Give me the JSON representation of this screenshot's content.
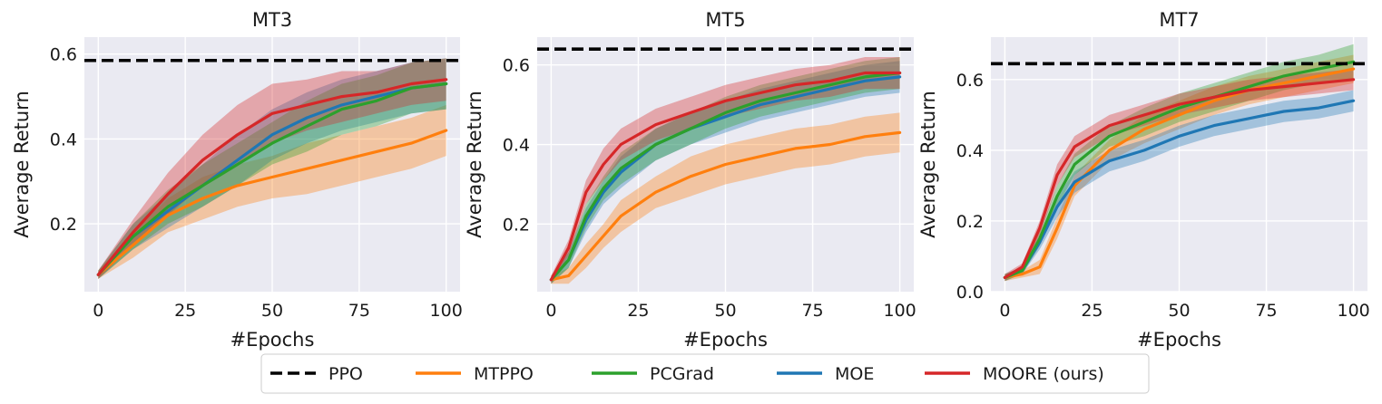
{
  "figure": {
    "legend": [
      {
        "name": "PPO",
        "color": "#000000",
        "dashed": true
      },
      {
        "name": "MTPPO",
        "color": "#ff7f0e",
        "dashed": false
      },
      {
        "name": "PCGrad",
        "color": "#2ca02c",
        "dashed": false
      },
      {
        "name": "MOE",
        "color": "#1f77b4",
        "dashed": false
      },
      {
        "name": "MOORE (ours)",
        "color": "#d62728",
        "dashed": false
      }
    ],
    "legend_position": "bottom-center"
  },
  "chart_data": [
    {
      "type": "line",
      "title": "MT3",
      "xlabel": "#Epochs",
      "ylabel": "Average Return",
      "xlim": [
        -4,
        104
      ],
      "ylim": [
        0.04,
        0.64
      ],
      "xticks": [
        "0",
        "25",
        "50",
        "75",
        "100"
      ],
      "yticks": [
        "0.2",
        "0.4",
        "0.6"
      ],
      "ppo": 0.585,
      "x": [
        0,
        10,
        20,
        30,
        40,
        50,
        60,
        70,
        80,
        90,
        100
      ],
      "series": [
        {
          "name": "MTPPO",
          "values": [
            0.08,
            0.15,
            0.22,
            0.26,
            0.29,
            0.31,
            0.33,
            0.35,
            0.37,
            0.39,
            0.42
          ],
          "spread": [
            0.01,
            0.03,
            0.04,
            0.05,
            0.05,
            0.05,
            0.06,
            0.06,
            0.06,
            0.06,
            0.06
          ]
        },
        {
          "name": "PCGrad",
          "values": [
            0.08,
            0.17,
            0.24,
            0.29,
            0.34,
            0.39,
            0.43,
            0.47,
            0.49,
            0.52,
            0.53
          ],
          "spread": [
            0.01,
            0.03,
            0.04,
            0.05,
            0.05,
            0.05,
            0.06,
            0.06,
            0.06,
            0.06,
            0.06
          ]
        },
        {
          "name": "MOE",
          "values": [
            0.08,
            0.17,
            0.23,
            0.29,
            0.35,
            0.41,
            0.45,
            0.48,
            0.5,
            0.52,
            0.53
          ],
          "spread": [
            0.01,
            0.03,
            0.04,
            0.05,
            0.06,
            0.06,
            0.06,
            0.06,
            0.06,
            0.06,
            0.06
          ]
        },
        {
          "name": "MOORE (ours)",
          "values": [
            0.08,
            0.18,
            0.27,
            0.35,
            0.41,
            0.46,
            0.48,
            0.5,
            0.51,
            0.53,
            0.54
          ],
          "spread": [
            0.01,
            0.03,
            0.05,
            0.06,
            0.07,
            0.07,
            0.06,
            0.06,
            0.05,
            0.05,
            0.05
          ]
        }
      ]
    },
    {
      "type": "line",
      "title": "MT5",
      "xlabel": "#Epochs",
      "ylabel": "Average Return",
      "xlim": [
        -4,
        104
      ],
      "ylim": [
        0.03,
        0.67
      ],
      "xticks": [
        "0",
        "25",
        "50",
        "75",
        "100"
      ],
      "yticks": [
        "0.2",
        "0.4",
        "0.6"
      ],
      "ppo": 0.64,
      "x": [
        0,
        5,
        10,
        15,
        20,
        30,
        40,
        50,
        60,
        70,
        80,
        90,
        100
      ],
      "series": [
        {
          "name": "MTPPO",
          "values": [
            0.06,
            0.07,
            0.12,
            0.17,
            0.22,
            0.28,
            0.32,
            0.35,
            0.37,
            0.39,
            0.4,
            0.42,
            0.43
          ],
          "spread": [
            0.01,
            0.02,
            0.03,
            0.03,
            0.04,
            0.04,
            0.05,
            0.05,
            0.05,
            0.05,
            0.05,
            0.05,
            0.05
          ]
        },
        {
          "name": "PCGrad",
          "values": [
            0.06,
            0.11,
            0.22,
            0.29,
            0.34,
            0.4,
            0.44,
            0.48,
            0.51,
            0.53,
            0.55,
            0.57,
            0.58
          ],
          "spread": [
            0.01,
            0.02,
            0.03,
            0.03,
            0.04,
            0.04,
            0.04,
            0.04,
            0.04,
            0.04,
            0.04,
            0.04,
            0.04
          ]
        },
        {
          "name": "MOE",
          "values": [
            0.06,
            0.11,
            0.21,
            0.28,
            0.33,
            0.4,
            0.44,
            0.47,
            0.5,
            0.52,
            0.54,
            0.56,
            0.57
          ],
          "spread": [
            0.01,
            0.02,
            0.03,
            0.03,
            0.04,
            0.04,
            0.04,
            0.04,
            0.04,
            0.04,
            0.04,
            0.04,
            0.04
          ]
        },
        {
          "name": "MOORE (ours)",
          "values": [
            0.06,
            0.14,
            0.28,
            0.35,
            0.4,
            0.45,
            0.48,
            0.51,
            0.53,
            0.55,
            0.56,
            0.58,
            0.58
          ],
          "spread": [
            0.01,
            0.02,
            0.03,
            0.04,
            0.04,
            0.04,
            0.04,
            0.04,
            0.04,
            0.04,
            0.04,
            0.04,
            0.04
          ]
        }
      ]
    },
    {
      "type": "line",
      "title": "MT7",
      "xlabel": "#Epochs",
      "ylabel": "Average Return",
      "xlim": [
        -4,
        104
      ],
      "ylim": [
        0.0,
        0.72
      ],
      "xticks": [
        "0",
        "25",
        "50",
        "75",
        "100"
      ],
      "yticks": [
        "0.0",
        "0.2",
        "0.4",
        "0.6"
      ],
      "ppo": 0.645,
      "x": [
        0,
        5,
        10,
        15,
        20,
        30,
        40,
        50,
        60,
        70,
        80,
        90,
        100
      ],
      "series": [
        {
          "name": "MTPPO",
          "values": [
            0.04,
            0.05,
            0.07,
            0.18,
            0.3,
            0.4,
            0.46,
            0.5,
            0.54,
            0.57,
            0.59,
            0.61,
            0.63
          ],
          "spread": [
            0.01,
            0.01,
            0.02,
            0.03,
            0.03,
            0.03,
            0.04,
            0.04,
            0.04,
            0.04,
            0.04,
            0.04,
            0.04
          ]
        },
        {
          "name": "PCGrad",
          "values": [
            0.04,
            0.06,
            0.15,
            0.27,
            0.36,
            0.44,
            0.48,
            0.52,
            0.55,
            0.58,
            0.61,
            0.63,
            0.65
          ],
          "spread": [
            0.01,
            0.01,
            0.02,
            0.03,
            0.03,
            0.03,
            0.04,
            0.04,
            0.04,
            0.04,
            0.04,
            0.04,
            0.05
          ]
        },
        {
          "name": "MOE",
          "values": [
            0.04,
            0.06,
            0.14,
            0.24,
            0.31,
            0.37,
            0.4,
            0.44,
            0.47,
            0.49,
            0.51,
            0.52,
            0.54
          ],
          "spread": [
            0.01,
            0.01,
            0.02,
            0.03,
            0.03,
            0.03,
            0.03,
            0.03,
            0.03,
            0.03,
            0.03,
            0.03,
            0.03
          ]
        },
        {
          "name": "MOORE (ours)",
          "values": [
            0.04,
            0.07,
            0.18,
            0.33,
            0.41,
            0.47,
            0.5,
            0.53,
            0.55,
            0.57,
            0.58,
            0.59,
            0.6
          ],
          "spread": [
            0.01,
            0.01,
            0.02,
            0.03,
            0.03,
            0.03,
            0.03,
            0.03,
            0.03,
            0.03,
            0.03,
            0.03,
            0.03
          ]
        }
      ]
    }
  ]
}
